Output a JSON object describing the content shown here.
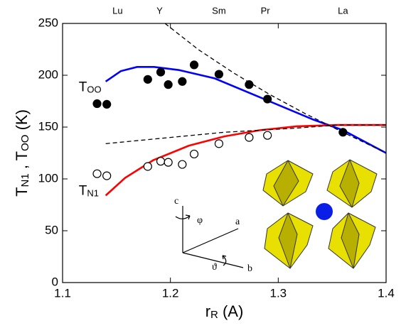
{
  "chart_data": {
    "type": "line",
    "xlim": [
      1.1,
      1.4
    ],
    "xticks": [
      1.1,
      1.2,
      1.3,
      1.4
    ],
    "ylim": [
      0,
      250
    ],
    "yticks": [
      0,
      50,
      100,
      150,
      200,
      250
    ],
    "xlabel": [
      "r",
      "R",
      " (A)"
    ],
    "ylabel": [
      "T",
      "N1",
      " , T",
      "OO",
      " (K)"
    ],
    "top_labels": {
      "labels": [
        "Lu",
        "Y",
        "Sm",
        "Pr",
        "La"
      ],
      "x": [
        1.151,
        1.19,
        1.245,
        1.288,
        1.36
      ]
    },
    "annotations": [
      {
        "parts": [
          "T",
          "OO"
        ],
        "color": "#0000ff",
        "x": 1.115,
        "y": 188
      },
      {
        "parts": [
          "T",
          "N1"
        ],
        "color": "#ff0000",
        "x": 1.115,
        "y": 88
      }
    ],
    "series": [
      {
        "style": "line",
        "color": "#0000ff",
        "x": [
          1.14,
          1.154,
          1.169,
          1.185,
          1.208,
          1.241,
          1.287,
          1.333,
          1.36,
          1.4
        ],
        "values": [
          194,
          204,
          208,
          208,
          205,
          197,
          177,
          157,
          147,
          125
        ]
      },
      {
        "style": "line",
        "color": "#ff0000",
        "x": [
          1.14,
          1.158,
          1.184,
          1.217,
          1.25,
          1.283,
          1.317,
          1.355,
          1.4
        ],
        "values": [
          84,
          101,
          118,
          132,
          141,
          147,
          150.7,
          152,
          152
        ]
      },
      {
        "style": "dashed",
        "color": "#000000",
        "x": [
          1.195,
          1.226,
          1.259,
          1.292,
          1.325,
          1.358,
          1.4
        ],
        "values": [
          250,
          224.7,
          202,
          181.5,
          163,
          146,
          125
        ]
      },
      {
        "style": "dashed",
        "color": "#000000",
        "x": [
          1.14,
          1.25,
          1.317,
          1.355,
          1.4
        ],
        "values": [
          134,
          145,
          149,
          152,
          152
        ]
      },
      {
        "style": "filled",
        "color": "#000000",
        "x": [
          1.132,
          1.141,
          1.179,
          1.191,
          1.198,
          1.211,
          1.222,
          1.245,
          1.273,
          1.29,
          1.36
        ],
        "values": [
          172.6,
          172,
          196,
          203,
          191,
          194,
          210,
          201,
          191,
          177,
          145
        ]
      },
      {
        "style": "open",
        "color": "#000000",
        "x": [
          1.132,
          1.141,
          1.179,
          1.191,
          1.198,
          1.211,
          1.222,
          1.245,
          1.273,
          1.29
        ],
        "values": [
          105,
          103,
          112,
          117,
          116,
          114,
          124,
          134,
          140,
          142
        ]
      }
    ],
    "inset": {
      "labels": [
        "c",
        "φ",
        "a",
        "b",
        "ϑ"
      ]
    }
  }
}
